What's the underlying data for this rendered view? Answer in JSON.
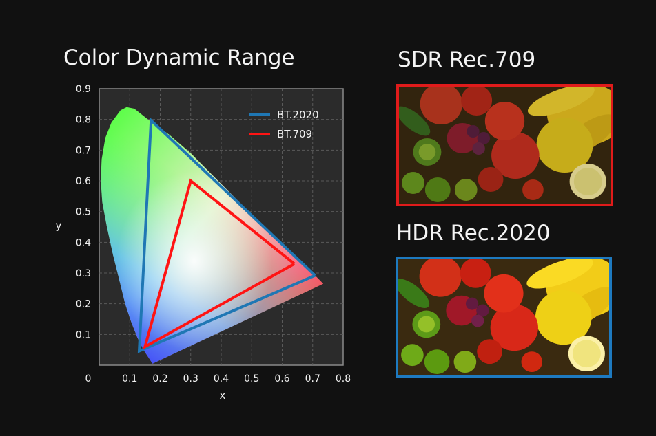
{
  "header": {
    "title": "Color Dynamic Range"
  },
  "panels": {
    "sdr": {
      "title": "SDR Rec.709",
      "border_color": "#e01b1b"
    },
    "hdr": {
      "title": "HDR Rec.2020",
      "border_color": "#1e7ac0"
    }
  },
  "chart_data": {
    "type": "line",
    "title": "Color Dynamic Range",
    "xlabel": "x",
    "ylabel": "y",
    "xlim": [
      0,
      0.8
    ],
    "ylim": [
      0,
      0.9
    ],
    "x_ticks": [
      "0",
      "0.1",
      "0.2",
      "0.3",
      "0.4",
      "0.5",
      "0.6",
      "0.7",
      "0.8"
    ],
    "y_ticks": [
      "0.1",
      "0.2",
      "0.3",
      "0.4",
      "0.5",
      "0.6",
      "0.7",
      "0.8",
      "0.9"
    ],
    "grid": true,
    "legend_position": "top-right",
    "spectral_locus": [
      [
        0.175,
        0.005
      ],
      [
        0.165,
        0.02
      ],
      [
        0.145,
        0.05
      ],
      [
        0.125,
        0.09
      ],
      [
        0.105,
        0.14
      ],
      [
        0.085,
        0.2
      ],
      [
        0.065,
        0.28
      ],
      [
        0.045,
        0.36
      ],
      [
        0.025,
        0.45
      ],
      [
        0.01,
        0.53
      ],
      [
        0.005,
        0.6
      ],
      [
        0.008,
        0.67
      ],
      [
        0.02,
        0.74
      ],
      [
        0.04,
        0.79
      ],
      [
        0.07,
        0.83
      ],
      [
        0.09,
        0.84
      ],
      [
        0.115,
        0.835
      ],
      [
        0.16,
        0.8
      ],
      [
        0.23,
        0.75
      ],
      [
        0.3,
        0.69
      ],
      [
        0.37,
        0.62
      ],
      [
        0.44,
        0.55
      ],
      [
        0.52,
        0.47
      ],
      [
        0.6,
        0.39
      ],
      [
        0.67,
        0.33
      ],
      [
        0.735,
        0.265
      ],
      [
        0.175,
        0.005
      ]
    ],
    "series": [
      {
        "name": "BT.2020",
        "color": "#1f77b4",
        "points": [
          [
            0.708,
            0.292
          ],
          [
            0.17,
            0.797
          ],
          [
            0.131,
            0.046
          ],
          [
            0.708,
            0.292
          ]
        ]
      },
      {
        "name": "BT.709",
        "color": "#ff1414",
        "points": [
          [
            0.64,
            0.33
          ],
          [
            0.3,
            0.6
          ],
          [
            0.15,
            0.06
          ],
          [
            0.64,
            0.33
          ]
        ]
      }
    ]
  }
}
